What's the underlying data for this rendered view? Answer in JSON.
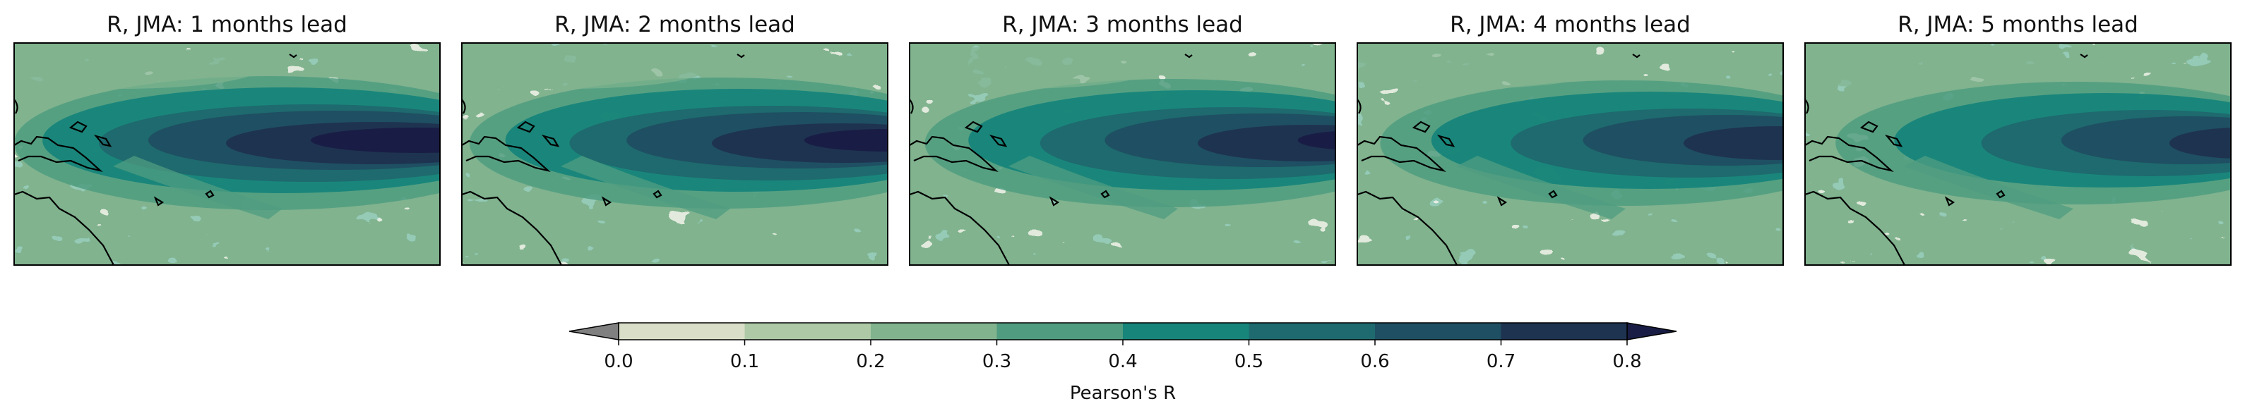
{
  "chart_data": {
    "type": "heatmap",
    "panels": [
      {
        "title": "R, JMA: 1 months lead",
        "lead_months": 1
      },
      {
        "title": "R, JMA: 2 months lead",
        "lead_months": 2
      },
      {
        "title": "R, JMA: 3 months lead",
        "lead_months": 3
      },
      {
        "title": "R, JMA: 4 months lead",
        "lead_months": 4
      },
      {
        "title": "R, JMA: 5 months lead",
        "lead_months": 5
      }
    ],
    "colorbar": {
      "label": "Pearson's R",
      "ticks": [
        "0.0",
        "0.1",
        "0.2",
        "0.3",
        "0.4",
        "0.5",
        "0.6",
        "0.7",
        "0.8"
      ],
      "levels": [
        0.0,
        0.1,
        0.2,
        0.3,
        0.4,
        0.5,
        0.6,
        0.7,
        0.8
      ],
      "colors": [
        "#d9dec8",
        "#adc9a6",
        "#80b38e",
        "#4f9c80",
        "#17857a",
        "#1e6a6e",
        "#1f4f62",
        "#1e3350"
      ],
      "under_color": "#808080",
      "over_color": "#191d45",
      "extend": "both"
    },
    "coastline_color": "#000000"
  }
}
